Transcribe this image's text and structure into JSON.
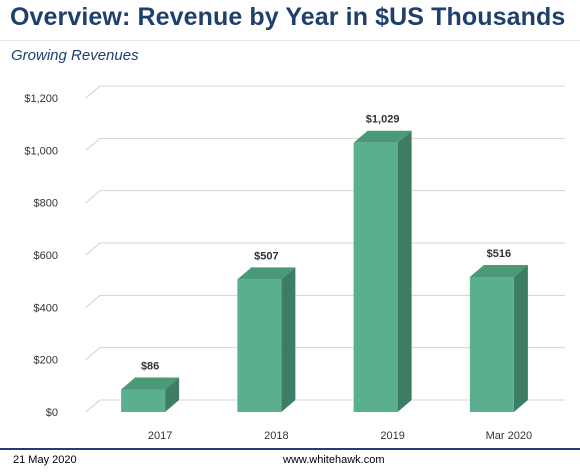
{
  "title": "Overview: Revenue by Year in $US Thousands",
  "subtitle": "Growing Revenues",
  "footer": {
    "date": "21 May 2020",
    "url": "www.whitehawk.com"
  },
  "colors": {
    "title": "#1f3f6e",
    "bar_front": "#5ab08e",
    "bar_side": "#3d7d63",
    "bar_top": "#4a9a77"
  },
  "chart_data": {
    "type": "bar",
    "categories": [
      "2017",
      "2018",
      "2019",
      "Mar 2020"
    ],
    "values": [
      86,
      507,
      1029,
      516
    ],
    "data_labels": [
      "$86",
      "$507",
      "$1,029",
      "$516"
    ],
    "y_ticks": [
      "$0",
      "$200",
      "$400",
      "$600",
      "$800",
      "$1,000",
      "$1,200"
    ],
    "ylim": [
      0,
      1200
    ],
    "grid": true,
    "legend": "none",
    "style": "3d"
  }
}
